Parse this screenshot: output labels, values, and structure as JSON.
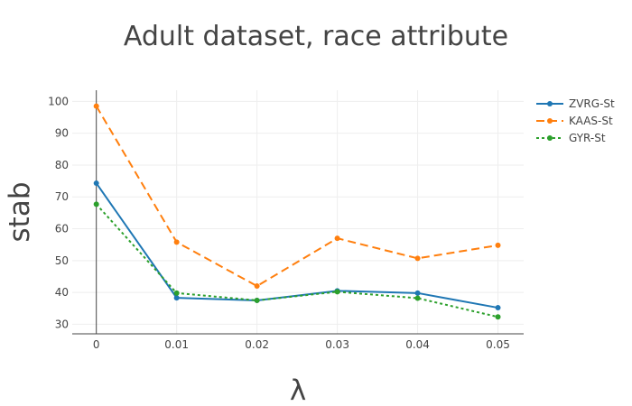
{
  "chart_data": {
    "type": "line",
    "title": "Adult dataset, race attribute",
    "xlabel": "λ",
    "ylabel": "stab",
    "x": [
      0,
      0.01,
      0.02,
      0.03,
      0.04,
      0.05
    ],
    "x_tick_labels": [
      "0",
      "0.01",
      "0.02",
      "0.03",
      "0.04",
      "0.05"
    ],
    "y_tick_values": [
      30,
      40,
      50,
      60,
      70,
      80,
      90,
      100
    ],
    "y_tick_labels": [
      "30",
      "40",
      "50",
      "60",
      "70",
      "80",
      "90",
      "100"
    ],
    "xlim": [
      -0.003,
      0.0532
    ],
    "ylim": [
      27,
      103.5
    ],
    "grid": true,
    "legend_position": "top-right",
    "series": [
      {
        "name": "ZVRG-St",
        "color": "#1f77b4",
        "dash": "solid",
        "values": [
          74.3,
          38.3,
          37.5,
          40.5,
          39.8,
          35.2
        ]
      },
      {
        "name": "KAAS-St",
        "color": "#ff7f0e",
        "dash": "dash",
        "values": [
          98.5,
          55.8,
          42.0,
          57.0,
          50.7,
          54.8
        ]
      },
      {
        "name": "GYR-St",
        "color": "#2ca02c",
        "dash": "dot",
        "values": [
          67.7,
          39.8,
          37.5,
          40.2,
          38.2,
          32.3
        ]
      }
    ]
  }
}
